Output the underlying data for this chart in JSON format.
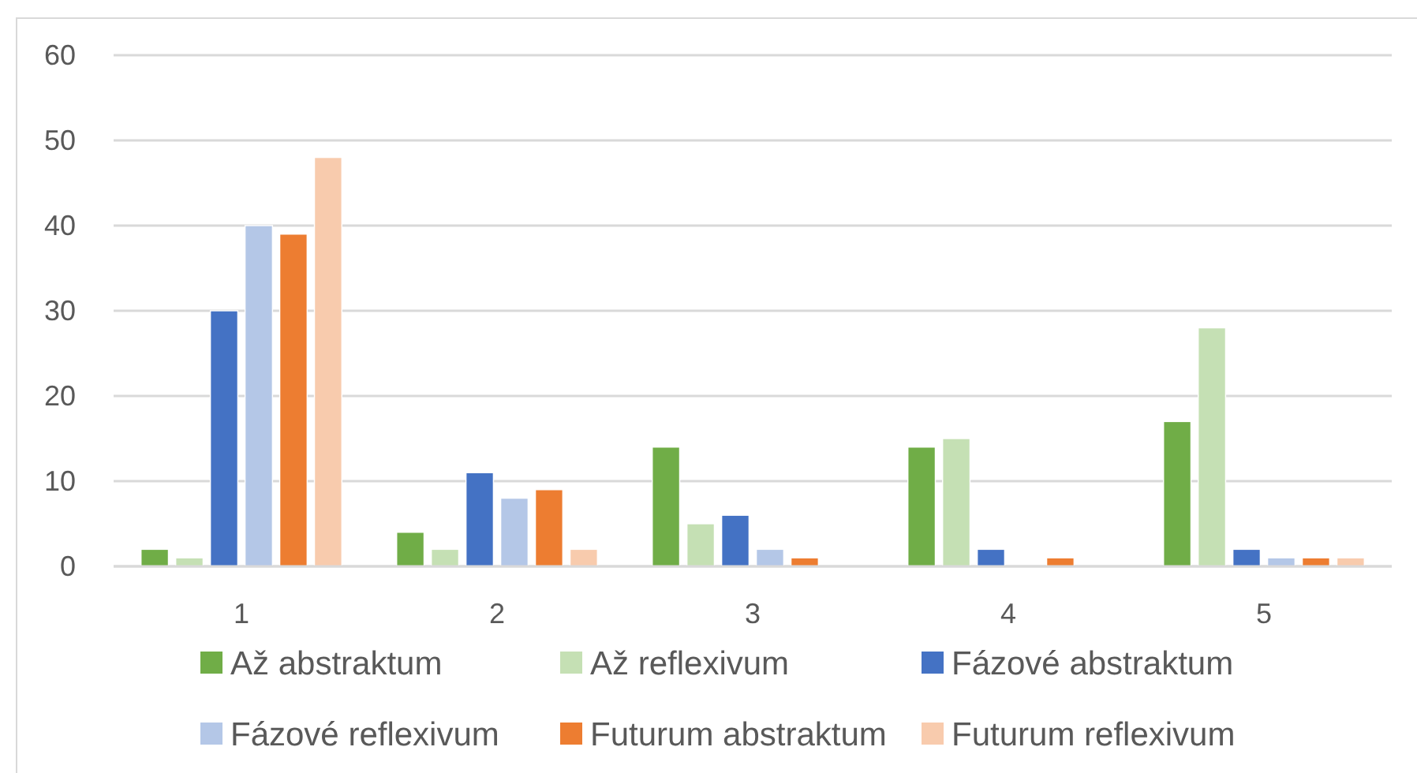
{
  "chart_data": {
    "type": "bar",
    "categories": [
      "1",
      "2",
      "3",
      "4",
      "5"
    ],
    "series": [
      {
        "name": "Až abstraktum",
        "color": "#70ad47",
        "values": [
          2,
          4,
          14,
          14,
          17
        ]
      },
      {
        "name": "Až reflexivum",
        "color": "#c5e0b4",
        "values": [
          1,
          2,
          5,
          15,
          28
        ]
      },
      {
        "name": "Fázové abstraktum",
        "color": "#4472c4",
        "values": [
          30,
          11,
          6,
          2,
          2
        ]
      },
      {
        "name": "Fázové reflexivum",
        "color": "#b4c7e7",
        "values": [
          40,
          8,
          2,
          0,
          1
        ]
      },
      {
        "name": "Futurum abstraktum",
        "color": "#ed7d31",
        "values": [
          39,
          9,
          1,
          1,
          1
        ]
      },
      {
        "name": "Futurum reflexivum",
        "color": "#f8cbad",
        "values": [
          48,
          2,
          0,
          0,
          1
        ]
      }
    ],
    "ylim": [
      0,
      60
    ],
    "yticks": [
      0,
      10,
      20,
      30,
      40,
      50,
      60
    ],
    "grid": "y",
    "legend": "bottom"
  }
}
